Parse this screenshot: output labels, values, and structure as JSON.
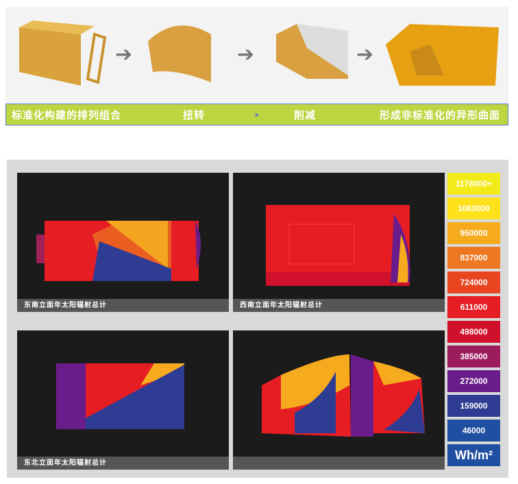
{
  "process": {
    "steps": [
      "标准化构建的排列组合",
      "扭转",
      "削减",
      "形成非标准化的异形曲面"
    ],
    "separator": "x"
  },
  "panels": [
    {
      "caption": "东南立面年太阳辐射总计"
    },
    {
      "caption": "西南立面年太阳辐射总计"
    },
    {
      "caption": "东北立面年太阳辐射总计"
    },
    {
      "caption": ""
    }
  ],
  "legend": {
    "unit": "Wh/m²",
    "items": [
      {
        "label": "1176000+",
        "color": "#f3ea1a"
      },
      {
        "label": "1063000",
        "color": "#fee119"
      },
      {
        "label": "950000",
        "color": "#f6aa1e"
      },
      {
        "label": "837000",
        "color": "#ee7721"
      },
      {
        "label": "724000",
        "color": "#e84621"
      },
      {
        "label": "611000",
        "color": "#e61d23"
      },
      {
        "label": "498000",
        "color": "#d0112b"
      },
      {
        "label": "385000",
        "color": "#9c1b5c"
      },
      {
        "label": "272000",
        "color": "#6a1d8a"
      },
      {
        "label": "159000",
        "color": "#2f3c93"
      },
      {
        "label": "46000",
        "color": "#1f4fa0"
      }
    ],
    "unit_color": "#1f4fa0"
  }
}
